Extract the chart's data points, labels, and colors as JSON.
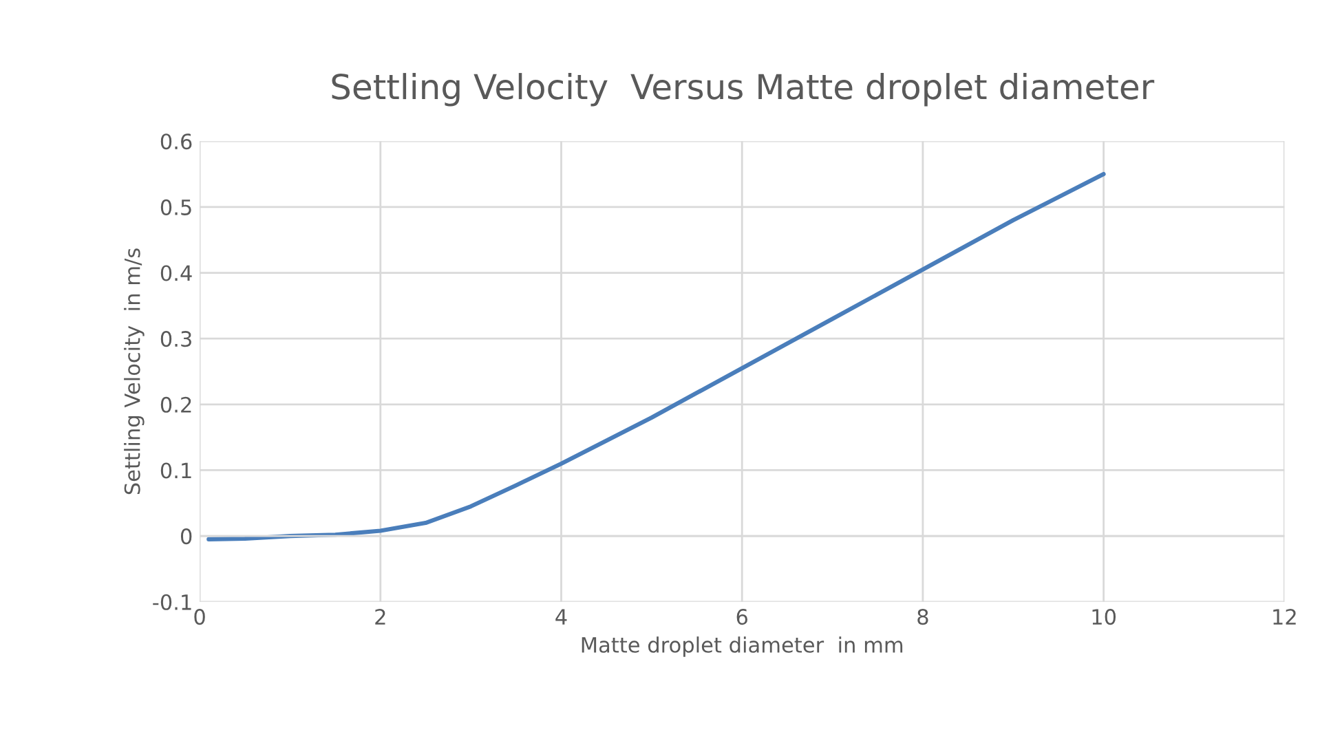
{
  "chart_data": {
    "type": "line",
    "title": "Settling Velocity  Versus Matte droplet diameter",
    "xlabel": "Matte droplet diameter  in mm",
    "ylabel": "Settling Velocity  in m/s",
    "x": [
      0.1,
      0.5,
      1,
      1.5,
      2,
      2.5,
      3,
      3.5,
      4,
      5,
      6,
      7,
      8,
      9,
      10
    ],
    "series": [
      {
        "color": "#4a7ebb",
        "values": [
          -0.005,
          -0.004,
          0,
          0.002,
          0.008,
          0.02,
          0.045,
          0.077,
          0.11,
          0.18,
          0.255,
          0.33,
          0.405,
          0.48,
          0.55
        ]
      }
    ],
    "xlim": [
      0,
      12
    ],
    "xticks": [
      0,
      2,
      4,
      6,
      8,
      10,
      12
    ],
    "ylim": [
      -0.1,
      0.6
    ],
    "yticks": [
      -0.1,
      0,
      0.1,
      0.2,
      0.3,
      0.4,
      0.5,
      0.6
    ],
    "grid": true,
    "marker": "none",
    "line_style": "solid"
  }
}
